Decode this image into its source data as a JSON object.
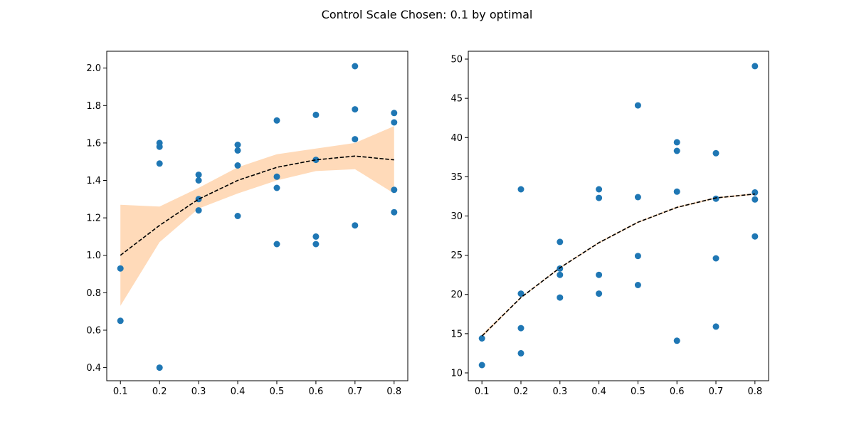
{
  "figure": {
    "title": "Control Scale Chosen: 0.1 by optimal"
  },
  "colors": {
    "points": "#1f77b4",
    "band": "#ffdab9",
    "band_edge": "#ff7f0e",
    "fit_line": "#000000"
  },
  "chart_data": [
    {
      "type": "scatter",
      "title": "",
      "xlabel": "",
      "ylabel": "",
      "xlim": [
        0.065,
        0.835
      ],
      "ylim": [
        0.33,
        2.09
      ],
      "xticks": [
        0.1,
        0.2,
        0.3,
        0.4,
        0.5,
        0.6,
        0.7,
        0.8
      ],
      "xtick_labels": [
        "0.1",
        "0.2",
        "0.3",
        "0.4",
        "0.5",
        "0.6",
        "0.7",
        "0.8"
      ],
      "yticks": [
        0.4,
        0.6,
        0.8,
        1.0,
        1.2,
        1.4,
        1.6,
        1.8,
        2.0
      ],
      "ytick_labels": [
        "0.4",
        "0.6",
        "0.8",
        "1.0",
        "1.2",
        "1.4",
        "1.6",
        "1.8",
        "2.0"
      ],
      "grid": false,
      "points": {
        "x": [
          0.1,
          0.1,
          0.2,
          0.2,
          0.2,
          0.2,
          0.3,
          0.3,
          0.3,
          0.3,
          0.4,
          0.4,
          0.4,
          0.4,
          0.5,
          0.5,
          0.5,
          0.5,
          0.6,
          0.6,
          0.6,
          0.6,
          0.7,
          0.7,
          0.7,
          0.7,
          0.8,
          0.8,
          0.8,
          0.8
        ],
        "y": [
          0.93,
          0.65,
          1.6,
          1.58,
          1.49,
          0.4,
          1.43,
          1.4,
          1.3,
          1.24,
          1.59,
          1.56,
          1.48,
          1.21,
          1.72,
          1.42,
          1.36,
          1.06,
          1.75,
          1.51,
          1.1,
          1.06,
          2.01,
          1.78,
          1.62,
          1.16,
          1.76,
          1.71,
          1.35,
          1.23
        ]
      },
      "fit_line": {
        "style": "dashed",
        "x": [
          0.1,
          0.2,
          0.3,
          0.4,
          0.5,
          0.6,
          0.7,
          0.8
        ],
        "y": [
          1.0,
          1.16,
          1.3,
          1.4,
          1.47,
          1.51,
          1.53,
          1.51
        ]
      },
      "confidence_band": {
        "x": [
          0.1,
          0.2,
          0.3,
          0.4,
          0.5,
          0.6,
          0.7,
          0.8
        ],
        "lower": [
          0.73,
          1.07,
          1.25,
          1.33,
          1.4,
          1.45,
          1.46,
          1.33
        ],
        "upper": [
          1.27,
          1.26,
          1.36,
          1.47,
          1.54,
          1.57,
          1.6,
          1.69
        ]
      }
    },
    {
      "type": "scatter",
      "title": "",
      "xlabel": "",
      "ylabel": "",
      "xlim": [
        0.065,
        0.835
      ],
      "ylim": [
        9.0,
        51.0
      ],
      "xticks": [
        0.1,
        0.2,
        0.3,
        0.4,
        0.5,
        0.6,
        0.7,
        0.8
      ],
      "xtick_labels": [
        "0.1",
        "0.2",
        "0.3",
        "0.4",
        "0.5",
        "0.6",
        "0.7",
        "0.8"
      ],
      "yticks": [
        10,
        15,
        20,
        25,
        30,
        35,
        40,
        45,
        50
      ],
      "ytick_labels": [
        "10",
        "15",
        "20",
        "25",
        "30",
        "35",
        "40",
        "45",
        "50"
      ],
      "grid": false,
      "points": {
        "x": [
          0.1,
          0.1,
          0.2,
          0.2,
          0.2,
          0.2,
          0.3,
          0.3,
          0.3,
          0.3,
          0.4,
          0.4,
          0.4,
          0.4,
          0.5,
          0.5,
          0.5,
          0.5,
          0.6,
          0.6,
          0.6,
          0.6,
          0.7,
          0.7,
          0.7,
          0.7,
          0.8,
          0.8,
          0.8,
          0.8
        ],
        "y": [
          14.4,
          11.0,
          33.4,
          20.1,
          15.7,
          12.5,
          26.7,
          23.3,
          22.5,
          19.6,
          33.4,
          32.3,
          22.5,
          20.1,
          44.1,
          32.4,
          24.9,
          21.2,
          39.4,
          38.3,
          33.1,
          14.1,
          38.0,
          32.2,
          24.6,
          15.9,
          49.1,
          33.0,
          32.1,
          27.4
        ]
      },
      "fit_line": {
        "style": "dashed",
        "x": [
          0.1,
          0.2,
          0.3,
          0.4,
          0.5,
          0.6,
          0.7,
          0.8
        ],
        "y": [
          14.7,
          19.6,
          23.4,
          26.6,
          29.2,
          31.1,
          32.3,
          32.8
        ]
      },
      "confidence_band": {
        "x": [
          0.1,
          0.2,
          0.3,
          0.4,
          0.5,
          0.6,
          0.7,
          0.8
        ],
        "lower": [
          14.5,
          19.5,
          23.3,
          26.5,
          29.1,
          31.0,
          32.2,
          32.7
        ],
        "upper": [
          14.9,
          19.7,
          23.5,
          26.7,
          29.3,
          31.2,
          32.4,
          32.9
        ]
      }
    }
  ]
}
